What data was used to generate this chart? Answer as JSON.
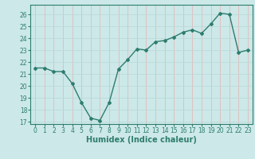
{
  "x": [
    0,
    1,
    2,
    3,
    4,
    5,
    6,
    7,
    8,
    9,
    10,
    11,
    12,
    13,
    14,
    15,
    16,
    17,
    18,
    19,
    20,
    21,
    22,
    23
  ],
  "y": [
    21.5,
    21.5,
    21.2,
    21.2,
    20.2,
    18.6,
    17.3,
    17.1,
    18.6,
    21.4,
    22.2,
    23.1,
    23.0,
    23.7,
    23.8,
    24.1,
    24.5,
    24.7,
    24.4,
    25.2,
    26.1,
    26.0,
    22.8,
    23.0
  ],
  "xlabel": "Humidex (Indice chaleur)",
  "xlim": [
    -0.5,
    23.5
  ],
  "ylim": [
    16.8,
    26.8
  ],
  "yticks": [
    17,
    18,
    19,
    20,
    21,
    22,
    23,
    24,
    25,
    26
  ],
  "xticks": [
    0,
    1,
    2,
    3,
    4,
    5,
    6,
    7,
    8,
    9,
    10,
    11,
    12,
    13,
    14,
    15,
    16,
    17,
    18,
    19,
    20,
    21,
    22,
    23
  ],
  "line_color": "#2e7d6e",
  "marker_color": "#2e7d6e",
  "bg_color": "#cce8e8",
  "grid_color_v": "#e8b0b0",
  "grid_color_h": "#b8d8d8",
  "axis_color": "#2e7d6e",
  "label_color": "#2e7d6e",
  "tick_fontsize": 5.5,
  "xlabel_fontsize": 7
}
